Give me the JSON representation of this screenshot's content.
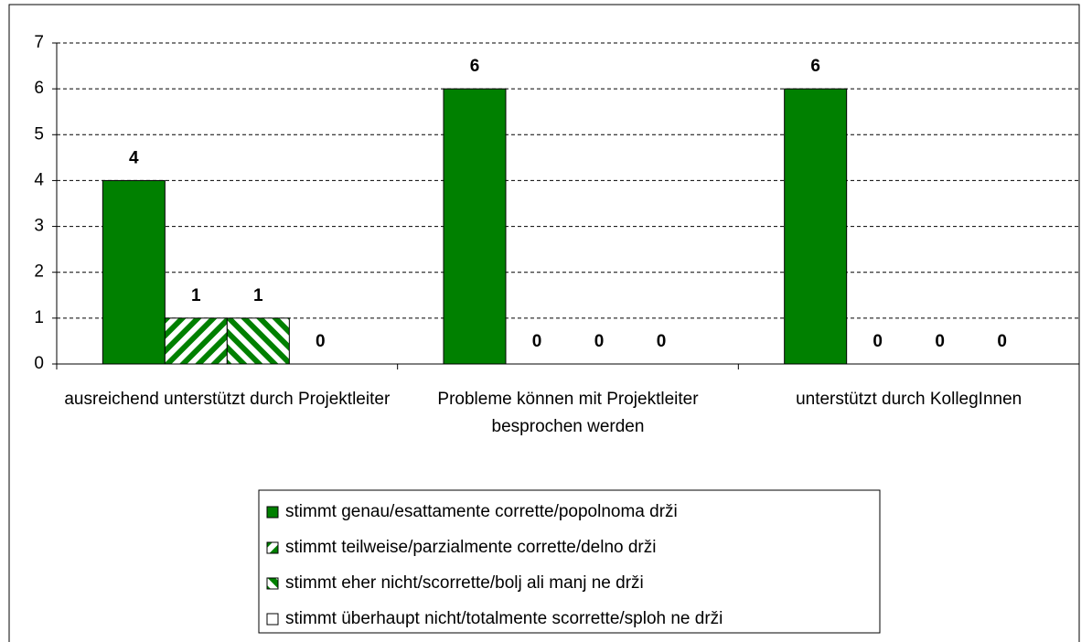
{
  "chart_data": {
    "type": "bar",
    "categories": [
      "ausreichend unterstützt durch Projektleiter",
      "Probleme können mit Projektleiter besprochen werden",
      "unterstützt durch KollegInnen"
    ],
    "series": [
      {
        "name": "stimmt genau/esattamente corrette/popolnoma drži",
        "color": "#008000",
        "values": [
          4,
          6,
          6
        ]
      },
      {
        "name": "stimmt teilweise/parzialmente corrette/delno drži",
        "color": "#008000",
        "pattern": "stripes-down",
        "values": [
          1,
          0,
          0
        ]
      },
      {
        "name": "stimmt eher nicht/scorrette/bolj ali manj ne drži",
        "color": "#008000",
        "pattern": "stripes-up",
        "values": [
          1,
          0,
          0
        ]
      },
      {
        "name": "stimmt überhaupt nicht/totalmente scorrette/sploh ne drži",
        "color": "#ffffff",
        "values": [
          0,
          0,
          0
        ]
      }
    ],
    "ylim": [
      0,
      7
    ],
    "yticks": [
      0,
      1,
      2,
      3,
      4,
      5,
      6,
      7
    ],
    "grid": true,
    "legend": "bottom"
  }
}
